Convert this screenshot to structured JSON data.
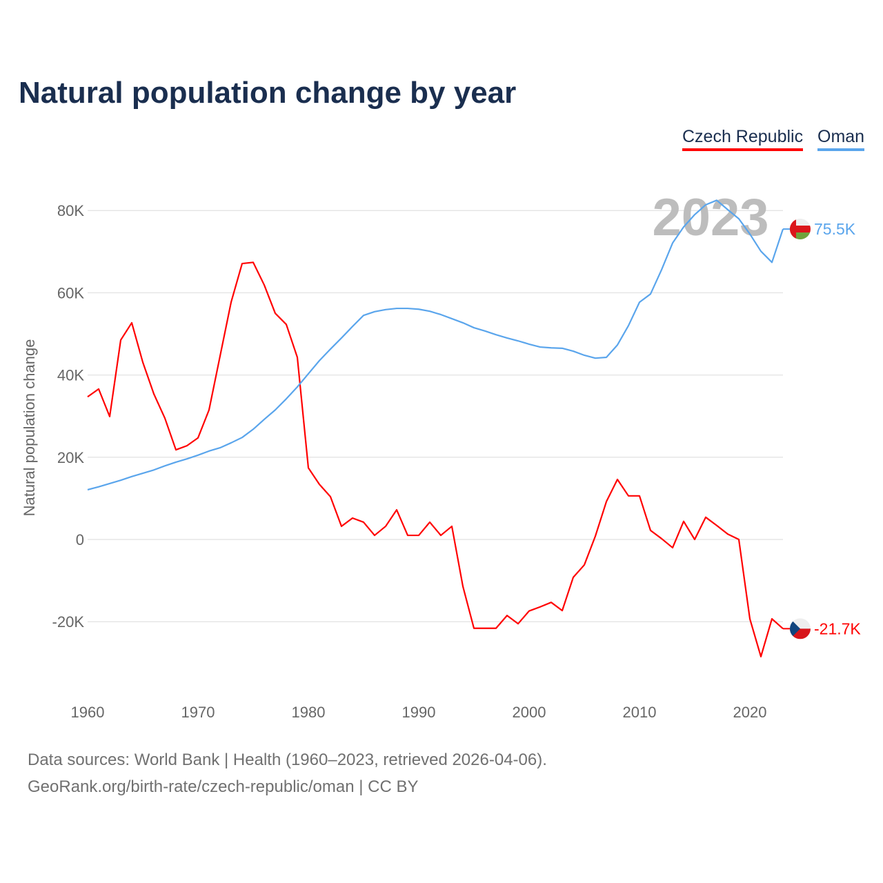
{
  "chart_data": {
    "type": "line",
    "title": "Natural population change by year",
    "xlabel": "",
    "ylabel": "Natural population change",
    "xlim": [
      1960,
      2023
    ],
    "ylim": [
      -30000,
      90000
    ],
    "grid": true,
    "legend_placement": "top-right",
    "year_overlay": "2023",
    "x_ticks": [
      "1960",
      "1970",
      "1980",
      "1990",
      "2000",
      "2010",
      "2020"
    ],
    "y_ticks": [
      {
        "v": -20000,
        "label": "-20K"
      },
      {
        "v": 0,
        "label": "0"
      },
      {
        "v": 20000,
        "label": "20K"
      },
      {
        "v": 40000,
        "label": "40K"
      },
      {
        "v": 60000,
        "label": "60K"
      },
      {
        "v": 80000,
        "label": "80K"
      }
    ],
    "x_start": 1960,
    "series": [
      {
        "name": "Czech Republic",
        "color": "#ff0000",
        "end_label": "-21.7K",
        "flag": "czech-flag",
        "values": [
          34.7,
          36.6,
          29.9,
          48.5,
          52.7,
          43.1,
          35.4,
          29.5,
          21.8,
          22.8,
          24.7,
          31.5,
          44.6,
          57.7,
          67.1,
          67.4,
          61.9,
          55.0,
          52.3,
          44.3,
          17.4,
          13.4,
          10.4,
          3.2,
          5.2,
          4.2,
          1.0,
          3.2,
          7.2,
          1.0,
          1.0,
          4.2,
          1.0,
          3.2,
          -11.4,
          -21.6,
          -21.6,
          -21.6,
          -18.5,
          -20.5,
          -17.4,
          -16.4,
          -15.3,
          -17.3,
          -9.2,
          -6.2,
          0.8,
          9.2,
          14.6,
          10.6,
          10.6,
          2.2,
          0.2,
          -2.0,
          4.4,
          0.0,
          5.4,
          3.4,
          1.3,
          0.0,
          -19.3,
          -28.5,
          -19.3,
          -21.7
        ],
        "unit": "thousands"
      },
      {
        "name": "Oman",
        "color": "#5aa5ec",
        "end_label": "75.5K",
        "flag": "oman-flag",
        "values": [
          12.1,
          12.8,
          13.6,
          14.4,
          15.3,
          16.1,
          16.9,
          17.9,
          18.8,
          19.6,
          20.5,
          21.5,
          22.3,
          23.5,
          24.8,
          26.8,
          29.2,
          31.5,
          34.2,
          37.1,
          40.3,
          43.5,
          46.3,
          49.0,
          51.8,
          54.5,
          55.4,
          55.9,
          56.2,
          56.2,
          56.0,
          55.5,
          54.7,
          53.7,
          52.7,
          51.5,
          50.7,
          49.8,
          49.0,
          48.3,
          47.5,
          46.8,
          46.6,
          46.5,
          45.8,
          44.8,
          44.1,
          44.3,
          47.3,
          52.0,
          57.7,
          59.7,
          65.6,
          72.1,
          76.0,
          79.0,
          81.4,
          82.5,
          80.2,
          78.0,
          74.3,
          70.1,
          67.4,
          75.5
        ],
        "unit": "thousands"
      }
    ]
  },
  "footer": {
    "line1": "Data sources: World Bank | Health (1960–2023, retrieved 2026-04-06).",
    "line2": "GeoRank.org/birth-rate/czech-republic/oman | CC BY"
  }
}
